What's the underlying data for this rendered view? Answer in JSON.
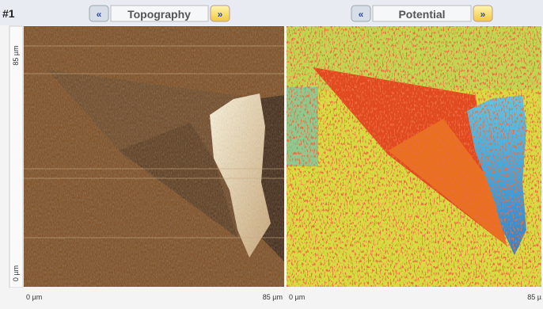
{
  "header": {
    "id": "#1",
    "panels": [
      {
        "label": "Topography"
      },
      {
        "label": "Potential"
      }
    ]
  },
  "axes": {
    "left": {
      "top": "85 µm",
      "bottom": "0 µm"
    },
    "bottom": [
      {
        "start": "0 µm",
        "end": "85 µm"
      },
      {
        "start": "0 µm",
        "end": "85 µ"
      }
    ]
  }
}
